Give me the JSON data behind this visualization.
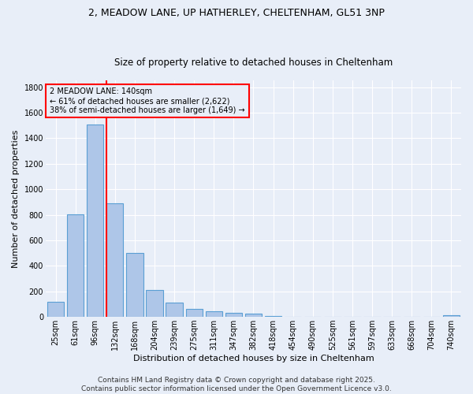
{
  "title_line1": "2, MEADOW LANE, UP HATHERLEY, CHELTENHAM, GL51 3NP",
  "title_line2": "Size of property relative to detached houses in Cheltenham",
  "xlabel": "Distribution of detached houses by size in Cheltenham",
  "ylabel": "Number of detached properties",
  "categories": [
    "25sqm",
    "61sqm",
    "96sqm",
    "132sqm",
    "168sqm",
    "204sqm",
    "239sqm",
    "275sqm",
    "311sqm",
    "347sqm",
    "382sqm",
    "418sqm",
    "454sqm",
    "490sqm",
    "525sqm",
    "561sqm",
    "597sqm",
    "633sqm",
    "668sqm",
    "704sqm",
    "740sqm"
  ],
  "values": [
    120,
    805,
    1510,
    890,
    500,
    210,
    110,
    65,
    45,
    32,
    25,
    10,
    0,
    0,
    0,
    0,
    0,
    0,
    0,
    0,
    15
  ],
  "bar_color": "#aec6e8",
  "bar_edge_color": "#5a9fd4",
  "vline_color": "red",
  "vline_pos": 2.57,
  "annotation_text": "2 MEADOW LANE: 140sqm\n← 61% of detached houses are smaller (2,622)\n38% of semi-detached houses are larger (1,649) →",
  "annotation_box_color": "red",
  "ylim": [
    0,
    1850
  ],
  "yticks": [
    0,
    200,
    400,
    600,
    800,
    1000,
    1200,
    1400,
    1600,
    1800
  ],
  "bg_color": "#e8eef8",
  "grid_color": "#ffffff",
  "footer": "Contains HM Land Registry data © Crown copyright and database right 2025.\nContains public sector information licensed under the Open Government Licence v3.0.",
  "title1_fontsize": 9,
  "title2_fontsize": 8.5,
  "axis_label_fontsize": 8,
  "tick_fontsize": 7,
  "annotation_fontsize": 7,
  "footer_fontsize": 6.5
}
